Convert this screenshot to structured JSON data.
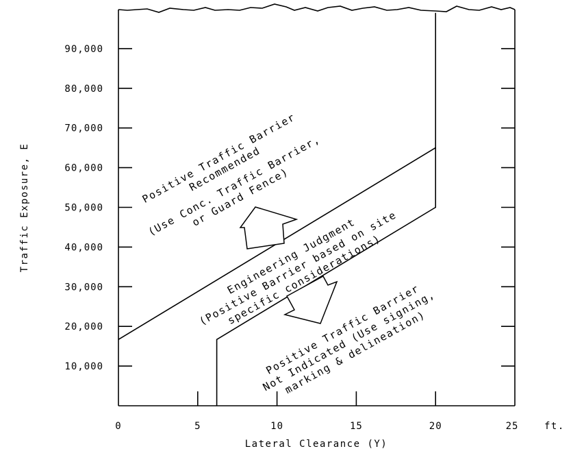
{
  "chart_data": {
    "type": "line",
    "title": "",
    "xlabel": "Lateral Clearance (Y)",
    "ylabel": "Traffic Exposure, E",
    "x_unit": "ft.",
    "xlim": [
      0,
      25
    ],
    "ylim": [
      0,
      100000
    ],
    "x_ticks": [
      0,
      5,
      10,
      15,
      20,
      25
    ],
    "x_tick_labels": [
      "0",
      "5",
      "10",
      "15",
      "20",
      "25"
    ],
    "y_ticks": [
      10000,
      20000,
      30000,
      40000,
      50000,
      60000,
      70000,
      80000,
      90000
    ],
    "y_tick_labels": [
      "10,000",
      "20,000",
      "30,000",
      "40,000",
      "50,000",
      "60,000",
      "70,000",
      "80,000",
      "90,000"
    ],
    "grid": false,
    "top_edge": "broken",
    "series": [
      {
        "values": [
          [
            0,
            16700
          ],
          [
            20,
            65000
          ]
        ]
      },
      {
        "values": [
          [
            6.2,
            0
          ],
          [
            6.2,
            16700
          ],
          [
            20,
            50000
          ],
          [
            20,
            99000
          ]
        ]
      }
    ],
    "regions": [
      {
        "lines": [
          "Positive Traffic Barrier",
          "Recommended",
          "(Use Conc. Traffic Barrier,",
          "or Guard Fence)"
        ],
        "arrow": "up"
      },
      {
        "lines": [
          "Engineering Judgment",
          "(Positive Barrier based on site",
          "specific considerations)"
        ]
      },
      {
        "lines": [
          "Positive Traffic Barrier",
          "Not Indicated (Use signing,",
          "marking & delineation)"
        ],
        "arrow": "down"
      }
    ]
  }
}
